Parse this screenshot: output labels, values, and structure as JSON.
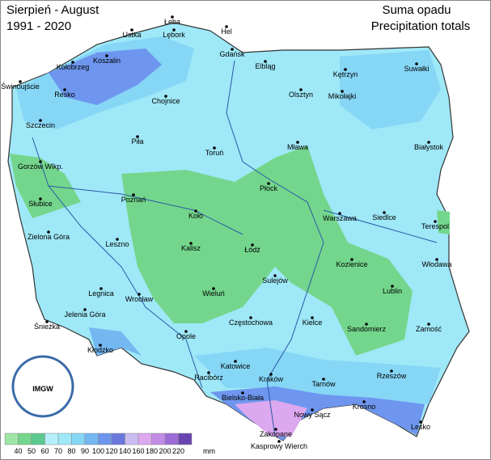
{
  "header": {
    "title_pl": "Sierpień - August",
    "period": "1991 - 2020",
    "subtitle_pl": "Suma opadu",
    "subtitle_en": "Precipitation totals"
  },
  "logo": {
    "text": "IMGW"
  },
  "legend": {
    "ticks": [
      40,
      50,
      60,
      70,
      80,
      90,
      100,
      120,
      140,
      160,
      180,
      200,
      220
    ],
    "unit": "mm",
    "colors": [
      "#9ee6a6",
      "#74d68c",
      "#5cc98f",
      "#b4f0fb",
      "#9fe8f8",
      "#86d6f6",
      "#74b8f2",
      "#6e96ee",
      "#6a78de",
      "#cbbcf2",
      "#dca8ef",
      "#c28ce6",
      "#9d6cd6",
      "#6a44b0"
    ]
  },
  "cities": [
    "Łeba",
    "Hel",
    "Ustka",
    "Lębork",
    "Gdańsk",
    "Elbląg",
    "Koszalin",
    "Kołobrzeg",
    "Świnoujście",
    "Resko",
    "Chojnice",
    "Kętrzyn",
    "Suwałki",
    "Olsztyn",
    "Mikołajki",
    "Szczecin",
    "Piła",
    "Toruń",
    "Mława",
    "Białystok",
    "Gorzów Wlkp.",
    "Płock",
    "Słubice",
    "Poznań",
    "Warszawa",
    "Siedlce",
    "Terespol",
    "Koło",
    "Zielona Góra",
    "Leszno",
    "Kalisz",
    "Łódź",
    "Kozienice",
    "Włodawa",
    "Sulejów",
    "Wieluń",
    "Lublin",
    "Legnica",
    "Wrocław",
    "Jelenia Góra",
    "Śnieżka",
    "Częstochowa",
    "Kielce",
    "Sandomierz",
    "Zamość",
    "Opole",
    "Kłodzko",
    "Katowice",
    "Racibórz",
    "Kraków",
    "Rzeszów",
    "Tarnów",
    "Bielsko-Biała",
    "Krosno",
    "Nowy Sącz",
    "Lesko",
    "Zakopane",
    "Kasprowy Wierch"
  ]
}
